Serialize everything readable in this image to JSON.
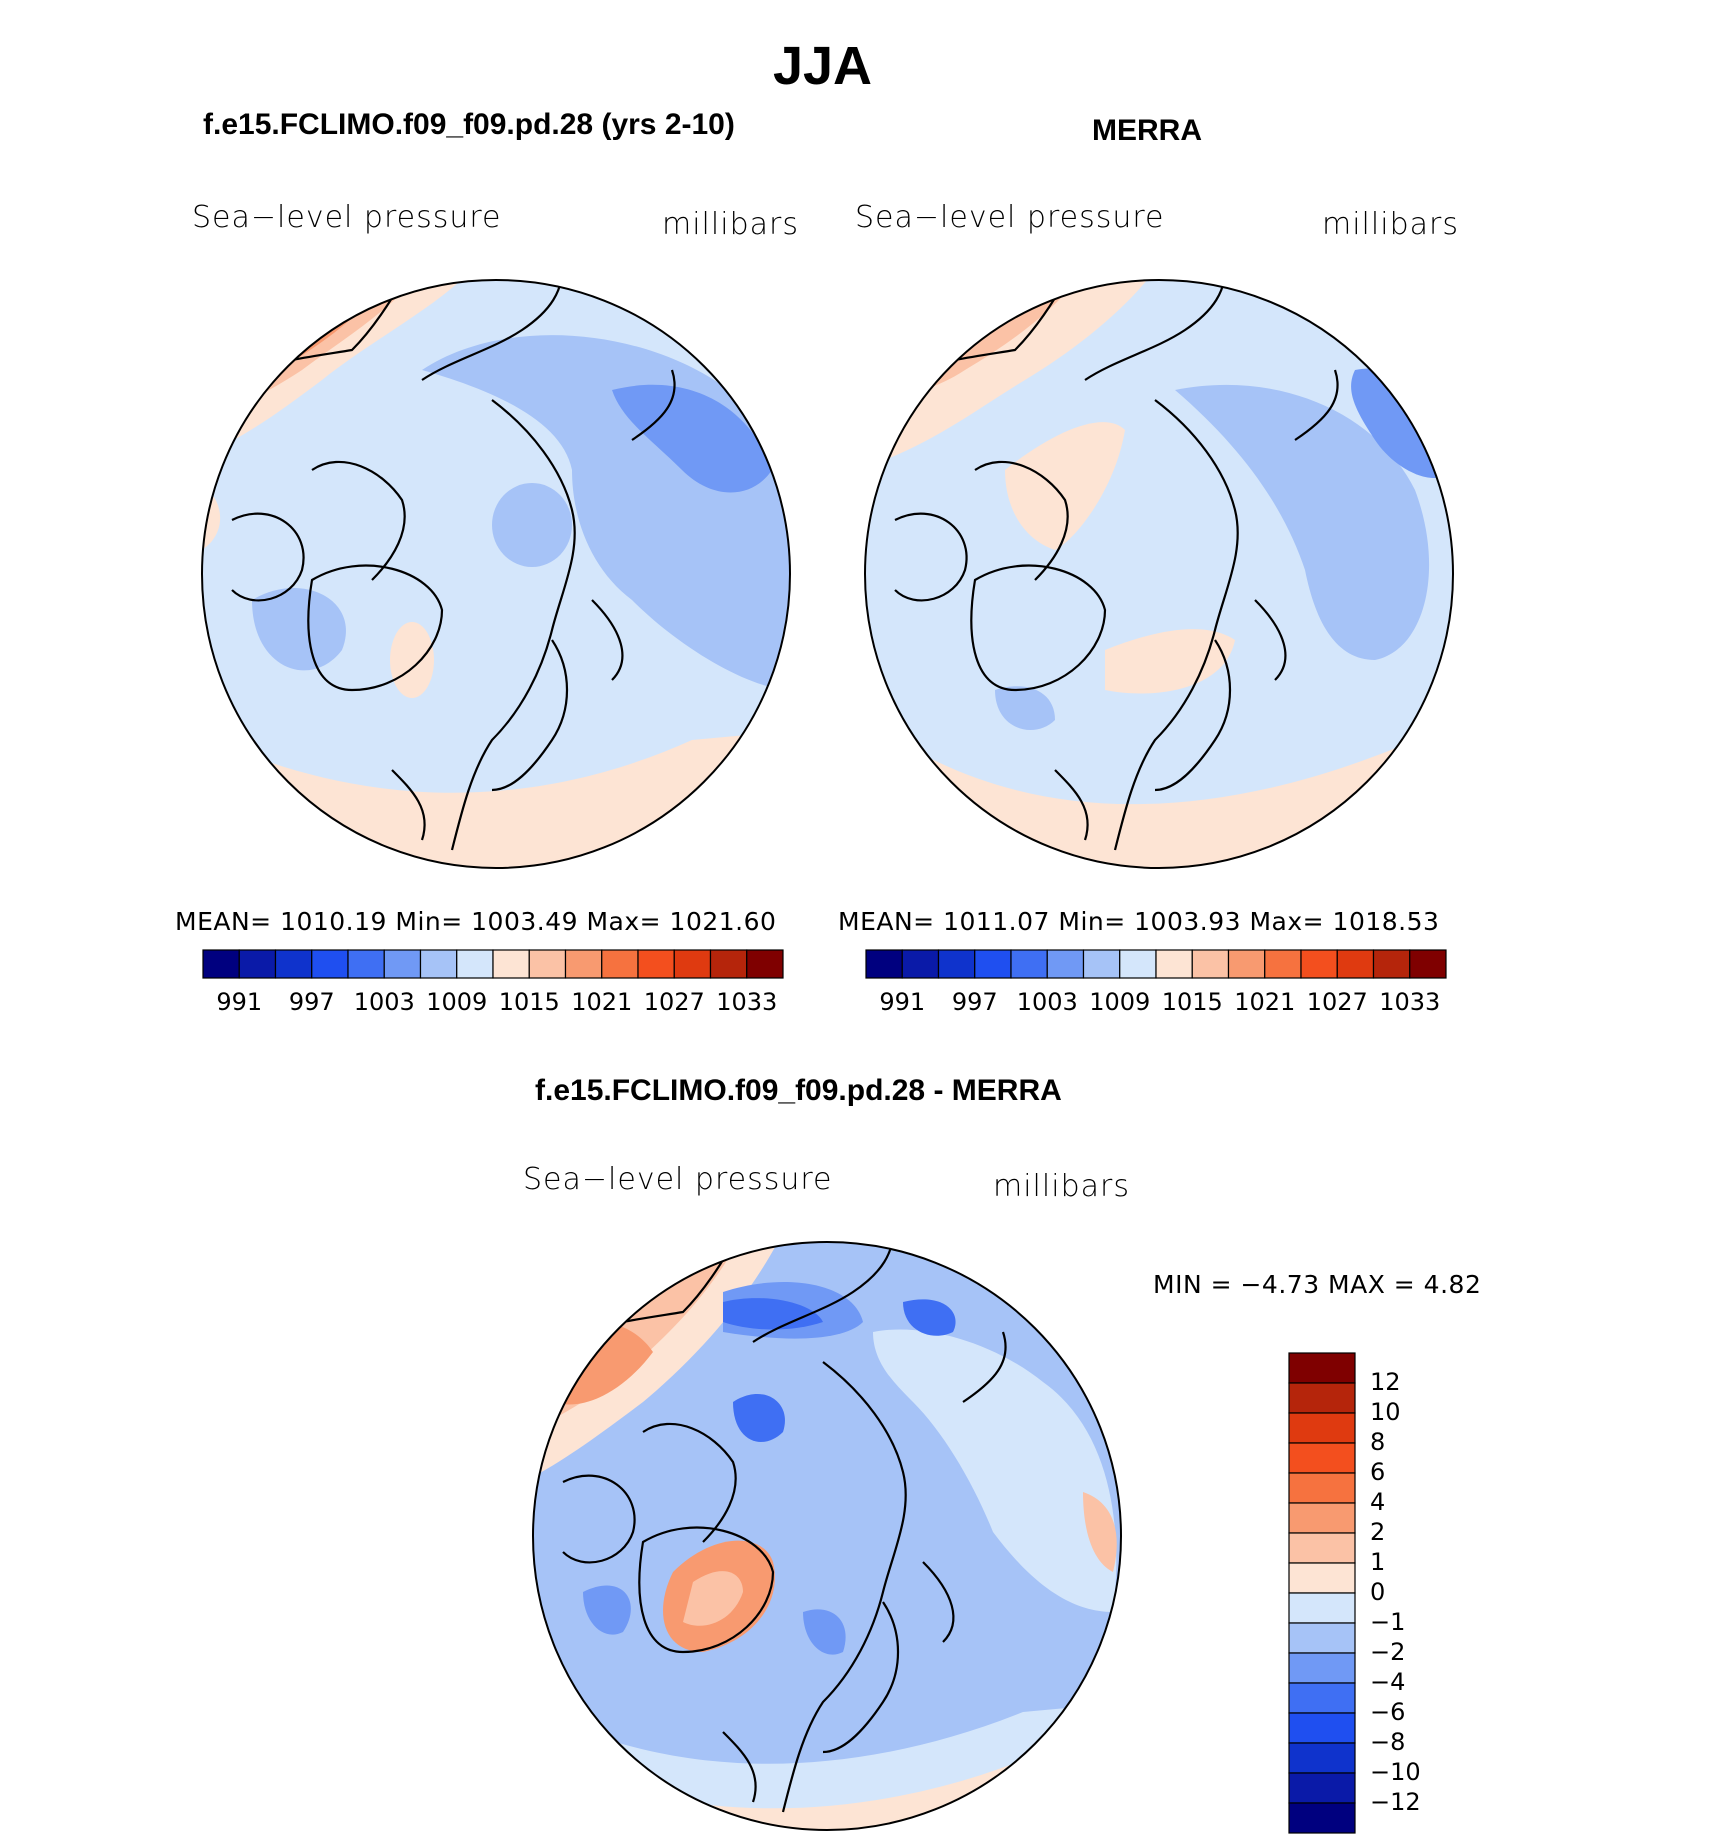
{
  "title": "JJA",
  "panel_left": {
    "title": "f.e15.FCLIMO.f09_f09.pd.28 (yrs 2-10)",
    "variable": "Sea−level pressure",
    "units": "millibars",
    "stats": "MEAN=  1010.19    Min=  1003.49    Max=  1021.60"
  },
  "panel_right": {
    "title": "MERRA",
    "variable": "Sea−level pressure",
    "units": "millibars",
    "stats": "MEAN=  1011.07    Min=  1003.93    Max=  1018.53"
  },
  "panel_diff": {
    "title": "f.e15.FCLIMO.f09_f09.pd.28 - MERRA",
    "variable": "Sea−level pressure",
    "units": "millibars",
    "minmax": "MIN  =    −4.73  MAX  =     4.82"
  },
  "colorbar_abs": {
    "colors": [
      "#00007f",
      "#0a1aa8",
      "#0f33cc",
      "#1f4ff0",
      "#3f6ff3",
      "#7099f5",
      "#a6c3f7",
      "#d4e6fb",
      "#fde4d4",
      "#fbc2a6",
      "#f89a70",
      "#f6723f",
      "#f34f1e",
      "#df3a10",
      "#b5250b",
      "#7f0000"
    ],
    "labels": [
      "991",
      "997",
      "1003",
      "1009",
      "1015",
      "1021",
      "1027",
      "1033"
    ]
  },
  "colorbar_diff": {
    "colors": [
      "#7f0000",
      "#b5250b",
      "#df3a10",
      "#f34f1e",
      "#f6723f",
      "#f89a70",
      "#fbc2a6",
      "#fde4d4",
      "#d4e6fb",
      "#a6c3f7",
      "#7099f5",
      "#3f6ff3",
      "#1f4ff0",
      "#0f33cc",
      "#0a1aa8",
      "#00007f"
    ],
    "labels": [
      "12",
      "10",
      "8",
      "6",
      "4",
      "2",
      "1",
      "0",
      "−1",
      "−2",
      "−4",
      "−6",
      "−8",
      "−10",
      "−12"
    ]
  }
}
